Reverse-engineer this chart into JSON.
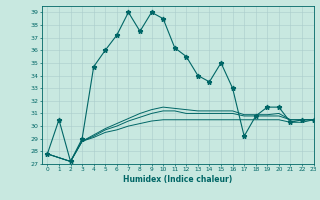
{
  "xlabel": "Humidex (Indice chaleur)",
  "background_color": "#c8e8e0",
  "grid_color": "#aacccc",
  "line_color": "#006666",
  "xlim": [
    -0.5,
    23
  ],
  "ylim": [
    27,
    39.5
  ],
  "yticks": [
    27,
    28,
    29,
    30,
    31,
    32,
    33,
    34,
    35,
    36,
    37,
    38,
    39
  ],
  "xticks": [
    0,
    1,
    2,
    3,
    4,
    5,
    6,
    7,
    8,
    9,
    10,
    11,
    12,
    13,
    14,
    15,
    16,
    17,
    18,
    19,
    20,
    21,
    22,
    23
  ],
  "series1_x": [
    0,
    1,
    2,
    3,
    4,
    5,
    6,
    7,
    8,
    9,
    10,
    11,
    12,
    13,
    14,
    15,
    16,
    17,
    18,
    19,
    20,
    21,
    22,
    23
  ],
  "series1_y": [
    27.8,
    30.5,
    27.2,
    29.0,
    34.7,
    36.0,
    37.2,
    39.0,
    37.5,
    39.0,
    38.5,
    36.2,
    35.5,
    34.0,
    33.5,
    35.0,
    33.0,
    29.2,
    30.8,
    31.5,
    31.5,
    30.3,
    30.5,
    30.5
  ],
  "series2_x": [
    0,
    2,
    3,
    4,
    5,
    6,
    7,
    8,
    9,
    10,
    11,
    12,
    13,
    14,
    15,
    16,
    17,
    18,
    19,
    20,
    21,
    22,
    23
  ],
  "series2_y": [
    27.8,
    27.2,
    28.8,
    29.1,
    29.5,
    29.7,
    30.0,
    30.2,
    30.4,
    30.5,
    30.5,
    30.5,
    30.5,
    30.5,
    30.5,
    30.5,
    30.5,
    30.5,
    30.5,
    30.5,
    30.3,
    30.3,
    30.5
  ],
  "series3_x": [
    0,
    2,
    3,
    4,
    5,
    6,
    7,
    8,
    9,
    10,
    11,
    12,
    13,
    14,
    15,
    16,
    17,
    18,
    19,
    20,
    21,
    22,
    23
  ],
  "series3_y": [
    27.8,
    27.2,
    28.8,
    29.2,
    29.7,
    30.0,
    30.4,
    30.7,
    31.0,
    31.2,
    31.2,
    31.0,
    31.0,
    31.0,
    31.0,
    31.0,
    30.8,
    30.8,
    30.8,
    30.8,
    30.5,
    30.5,
    30.5
  ],
  "series4_x": [
    0,
    2,
    3,
    4,
    5,
    6,
    7,
    8,
    9,
    10,
    11,
    12,
    13,
    14,
    15,
    16,
    17,
    18,
    19,
    20,
    21,
    22,
    23
  ],
  "series4_y": [
    27.8,
    27.2,
    28.8,
    29.3,
    29.8,
    30.2,
    30.6,
    31.0,
    31.3,
    31.5,
    31.4,
    31.3,
    31.2,
    31.2,
    31.2,
    31.2,
    30.9,
    30.9,
    30.9,
    31.0,
    30.5,
    30.5,
    30.5
  ]
}
